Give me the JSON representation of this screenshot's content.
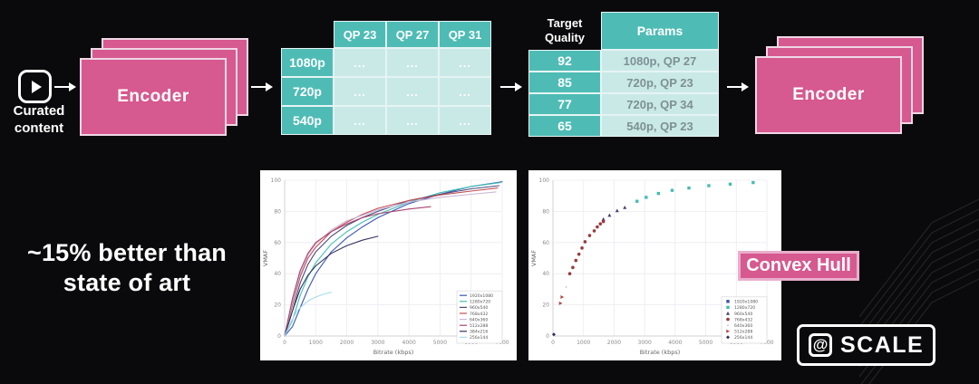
{
  "colors": {
    "pink": "#d6598f",
    "pink_border": "#efd7e6",
    "teal": "#4ebcb5",
    "teal_light": "#c9e9e7",
    "param_text": "#7e9093",
    "background": "#0a0a0c"
  },
  "pipeline": {
    "curated_label": "Curated content",
    "encoder_left": "Encoder",
    "encoder_right": "Encoder",
    "qp_table": {
      "col_headers": [
        "QP 23",
        "QP 27",
        "QP 31"
      ],
      "row_headers": [
        "1080p",
        "720p",
        "540p"
      ],
      "cell_placeholder": "..."
    },
    "quality_table": {
      "col1_header": "Target Quality",
      "col2_header": "Params",
      "rows": [
        [
          "92",
          "1080p, QP 27"
        ],
        [
          "85",
          "720p, QP 23"
        ],
        [
          "77",
          "720p, QP 34"
        ],
        [
          "65",
          "540p, QP 23"
        ]
      ]
    }
  },
  "callouts": {
    "better_than": "~15% better than state of art",
    "convex_hull": "Convex Hull"
  },
  "logo": {
    "at": "@",
    "scale": "SCALE"
  },
  "chart_data": [
    {
      "type": "line",
      "title": "",
      "xlabel": "Bitrate (kbps)",
      "ylabel": "VMAF",
      "xlim": [
        0,
        7000
      ],
      "ylim": [
        0,
        100
      ],
      "xticks": [
        0,
        1000,
        2000,
        3000,
        4000,
        5000,
        6000,
        7000
      ],
      "yticks": [
        0,
        20,
        40,
        60,
        80,
        100
      ],
      "grid": true,
      "legend_position": "lower right",
      "series": [
        {
          "name": "1920x1080",
          "color": "#3d56b8",
          "points": [
            [
              0,
              0
            ],
            [
              250,
              6
            ],
            [
              500,
              18
            ],
            [
              750,
              30
            ],
            [
              1000,
              40
            ],
            [
              1500,
              54
            ],
            [
              2000,
              63
            ],
            [
              2500,
              70
            ],
            [
              3000,
              76
            ],
            [
              4000,
              85
            ],
            [
              5000,
              91
            ],
            [
              6000,
              96
            ],
            [
              7000,
              99
            ]
          ]
        },
        {
          "name": "1280x720",
          "color": "#3fbfb4",
          "points": [
            [
              0,
              0
            ],
            [
              250,
              10
            ],
            [
              500,
              26
            ],
            [
              750,
              38
            ],
            [
              1000,
              47
            ],
            [
              1500,
              59
            ],
            [
              2000,
              67
            ],
            [
              2500,
              73
            ],
            [
              3000,
              78
            ],
            [
              4000,
              86
            ],
            [
              5000,
              92
            ],
            [
              6000,
              96
            ],
            [
              6950,
              98.5
            ]
          ]
        },
        {
          "name": "960x540",
          "color": "#4b4b7e",
          "points": [
            [
              0,
              0
            ],
            [
              250,
              16
            ],
            [
              500,
              34
            ],
            [
              750,
              46
            ],
            [
              1000,
              54
            ],
            [
              1500,
              64
            ],
            [
              2000,
              71
            ],
            [
              2500,
              76
            ],
            [
              3000,
              80
            ],
            [
              4000,
              87
            ],
            [
              5000,
              91
            ],
            [
              6000,
              94.5
            ],
            [
              6900,
              96.5
            ]
          ]
        },
        {
          "name": "768x432",
          "color": "#c44e52",
          "points": [
            [
              0,
              0
            ],
            [
              250,
              20
            ],
            [
              500,
              38
            ],
            [
              750,
              50
            ],
            [
              1000,
              57
            ],
            [
              1500,
              67
            ],
            [
              2000,
              73
            ],
            [
              2500,
              78
            ],
            [
              3000,
              82
            ],
            [
              4000,
              87
            ],
            [
              5000,
              90.5
            ],
            [
              6000,
              93
            ],
            [
              6850,
              95
            ]
          ]
        },
        {
          "name": "640x360",
          "color": "#cbb7d6",
          "points": [
            [
              0,
              0
            ],
            [
              250,
              22
            ],
            [
              500,
              40
            ],
            [
              750,
              52
            ],
            [
              1000,
              59
            ],
            [
              1500,
              68
            ],
            [
              2000,
              74
            ],
            [
              3000,
              81
            ],
            [
              4000,
              86
            ],
            [
              5000,
              89
            ],
            [
              6000,
              91
            ],
            [
              6800,
              92.5
            ]
          ]
        },
        {
          "name": "512x288",
          "color": "#a8446e",
          "points": [
            [
              0,
              0
            ],
            [
              250,
              24
            ],
            [
              500,
              42
            ],
            [
              750,
              53
            ],
            [
              1000,
              60
            ],
            [
              1500,
              67
            ],
            [
              2000,
              72
            ],
            [
              2500,
              76
            ],
            [
              3000,
              78.5
            ],
            [
              4000,
              81.5
            ],
            [
              4700,
              83
            ]
          ]
        },
        {
          "name": "384x216",
          "color": "#34345f",
          "points": [
            [
              0,
              0
            ],
            [
              250,
              16
            ],
            [
              500,
              30
            ],
            [
              750,
              39
            ],
            [
              1000,
              45
            ],
            [
              1500,
              53
            ],
            [
              2000,
              58
            ],
            [
              2500,
              61.5
            ],
            [
              3000,
              64
            ]
          ]
        },
        {
          "name": "256x144",
          "color": "#a8dcec",
          "points": [
            [
              0,
              0
            ],
            [
              200,
              9
            ],
            [
              400,
              16
            ],
            [
              600,
              20
            ],
            [
              800,
              23
            ],
            [
              1000,
              25
            ],
            [
              1250,
              26.8
            ],
            [
              1500,
              28
            ]
          ]
        }
      ]
    },
    {
      "type": "scatter",
      "title": "",
      "xlabel": "Bitrate (kbps)",
      "ylabel": "VMAF",
      "xlim": [
        0,
        7000
      ],
      "ylim": [
        0,
        100
      ],
      "xticks": [
        0,
        1000,
        2000,
        3000,
        4000,
        5000,
        6000,
        7000
      ],
      "yticks": [
        0,
        20,
        40,
        60,
        80,
        100
      ],
      "grid": true,
      "legend_position": "lower right",
      "series": [
        {
          "name": "1920x1080",
          "marker": "square",
          "color": "#3a53a4",
          "points": []
        },
        {
          "name": "1280x720",
          "marker": "square",
          "color": "#45bdb0",
          "points": [
            [
              2750,
              86.5
            ],
            [
              3050,
              89
            ],
            [
              3450,
              91.5
            ],
            [
              3900,
              93.5
            ],
            [
              4450,
              95
            ],
            [
              5100,
              96.5
            ],
            [
              5800,
              97.5
            ],
            [
              6550,
              98.5
            ]
          ]
        },
        {
          "name": "960x540",
          "marker": "triangle",
          "color": "#4a3f6e",
          "points": [
            [
              1650,
              75
            ],
            [
              1850,
              77.5
            ],
            [
              2100,
              80.5
            ],
            [
              2350,
              82.5
            ]
          ]
        },
        {
          "name": "768x432",
          "marker": "circle",
          "color": "#963c3c",
          "points": [
            [
              550,
              40
            ],
            [
              650,
              44
            ],
            [
              750,
              48.5
            ],
            [
              850,
              52.5
            ],
            [
              950,
              56.5
            ],
            [
              1050,
              60.5
            ],
            [
              1200,
              64.5
            ],
            [
              1350,
              67.5
            ],
            [
              1450,
              70
            ],
            [
              1550,
              72
            ],
            [
              1650,
              73.5
            ]
          ]
        },
        {
          "name": "640x360",
          "marker": "dot",
          "color": "#c9c9d4",
          "points": [
            [
              430,
              31.5
            ]
          ]
        },
        {
          "name": "512x288",
          "marker": "triangle-right",
          "color": "#b04343",
          "points": [
            [
              250,
              21
            ],
            [
              300,
              25
            ]
          ]
        },
        {
          "name": "256x144",
          "marker": "diamond",
          "color": "#2e2e5e",
          "points": [
            [
              30,
              1
            ]
          ]
        }
      ]
    }
  ]
}
